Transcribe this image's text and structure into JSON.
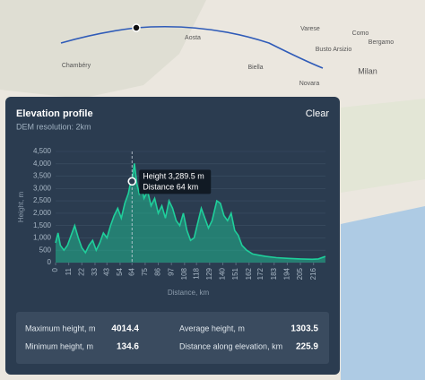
{
  "map": {
    "labels": [
      {
        "text": "Milan"
      },
      {
        "text": "Biella"
      },
      {
        "text": "Novara"
      },
      {
        "text": "Bergamo"
      },
      {
        "text": "Varese"
      },
      {
        "text": "Busto Arsizio"
      },
      {
        "text": "Chambéry"
      },
      {
        "text": "Aosta"
      },
      {
        "text": "Como"
      }
    ]
  },
  "panel": {
    "title": "Elevation profile",
    "subtitle": "DEM resolution: 2km",
    "clear": "Clear"
  },
  "chart_data": {
    "type": "area",
    "xlabel": "Distance, km",
    "ylabel": "Height, m",
    "x": [
      0,
      2,
      4,
      7,
      10,
      13,
      16,
      19,
      22,
      25,
      28,
      31,
      34,
      37,
      40,
      43,
      46,
      49,
      52,
      55,
      58,
      61,
      63,
      64,
      66,
      68,
      70,
      72,
      74,
      77,
      80,
      83,
      86,
      89,
      92,
      95,
      98,
      101,
      104,
      107,
      110,
      113,
      116,
      119,
      122,
      125,
      128,
      131,
      135,
      138,
      141,
      144,
      147,
      150,
      153,
      156,
      160,
      165,
      170,
      176,
      185,
      195,
      205,
      215,
      220,
      225.9
    ],
    "series": [
      {
        "name": "Elevation",
        "color": "#1fcf9b",
        "values": [
          800,
          1200,
          700,
          500,
          700,
          1100,
          1500,
          1000,
          600,
          400,
          700,
          900,
          500,
          800,
          1200,
          1000,
          1500,
          1900,
          2200,
          1800,
          2400,
          2800,
          3300,
          3290,
          4014,
          3200,
          2800,
          3100,
          2600,
          2900,
          2300,
          2600,
          2000,
          2300,
          1800,
          2500,
          2200,
          1700,
          1500,
          2000,
          1300,
          900,
          1000,
          1600,
          2200,
          1800,
          1400,
          1700,
          2500,
          2400,
          1900,
          1700,
          2000,
          1300,
          1100,
          700,
          500,
          350,
          300,
          250,
          200,
          170,
          150,
          135,
          150,
          250
        ]
      }
    ],
    "xlim": [
      0,
      226
    ],
    "ylim": [
      0,
      4500
    ],
    "xticks": [
      0,
      11,
      22,
      33,
      43,
      54,
      64,
      75,
      86,
      97,
      108,
      118,
      129,
      140,
      151,
      162,
      172,
      183,
      194,
      205,
      216
    ],
    "yticks": [
      0,
      500,
      {
        "value": 1000,
        "label": "1,000"
      },
      {
        "value": 1500,
        "label": "1,500"
      },
      {
        "value": 2000,
        "label": "2,000"
      },
      {
        "value": 2500,
        "label": "2,500"
      },
      {
        "value": 3000,
        "label": "3,000"
      },
      {
        "value": 3500,
        "label": "3,500"
      },
      {
        "value": 4000,
        "label": "4,000"
      },
      {
        "value": 4500,
        "label": "4,500"
      }
    ],
    "grid": true,
    "hover": {
      "x": 64,
      "y": 3289.5,
      "height_label": "Height 3,289.5 m",
      "distance_label": "Distance 64 km"
    }
  },
  "stats": [
    {
      "label": "Maximum height, m",
      "value": 4014.4
    },
    {
      "label": "Average height, m",
      "value": 1303.5
    },
    {
      "label": "Minimum height, m",
      "value": 134.6
    },
    {
      "label": "Distance along elevation, km",
      "value": 225.9
    }
  ]
}
